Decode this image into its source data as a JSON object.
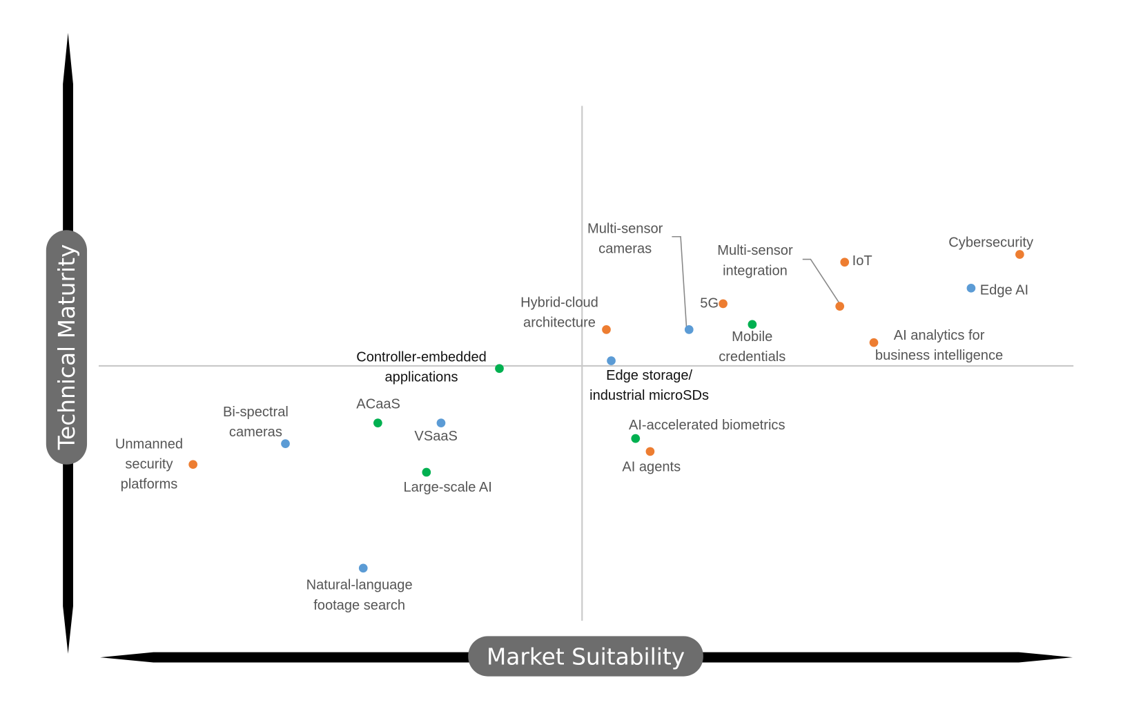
{
  "chart_data": {
    "type": "scatter",
    "title": "",
    "xlabel": "Market Suitability",
    "ylabel": "Technical Maturity",
    "xlim": [
      -100,
      100
    ],
    "ylim": [
      -100,
      100
    ],
    "grid": false,
    "quadrant_lines": {
      "x": 0,
      "y": 0
    },
    "colors": {
      "orange": "#ED7D31",
      "blue": "#5B9BD5",
      "green": "#00B050"
    },
    "points": [
      {
        "lines": [
          "Cybersecurity"
        ],
        "x": 90,
        "y": 43,
        "color": "orange"
      },
      {
        "lines": [
          "Edge AI"
        ],
        "x": 80,
        "y": 30,
        "color": "blue"
      },
      {
        "lines": [
          "IoT"
        ],
        "x": 54,
        "y": 40,
        "color": "orange"
      },
      {
        "lines": [
          "Multi-sensor",
          "integration"
        ],
        "x": 53,
        "y": 23,
        "color": "orange"
      },
      {
        "lines": [
          "AI analytics for",
          "business intelligence"
        ],
        "x": 60,
        "y": 9,
        "color": "orange"
      },
      {
        "lines": [
          "5G"
        ],
        "x": 29,
        "y": 24,
        "color": "orange"
      },
      {
        "lines": [
          "Mobile",
          "credentials"
        ],
        "x": 35,
        "y": 16,
        "color": "green"
      },
      {
        "lines": [
          "Multi-sensor",
          "cameras"
        ],
        "x": 22,
        "y": 14,
        "color": "blue"
      },
      {
        "lines": [
          "Hybrid-cloud",
          "architecture"
        ],
        "x": 5,
        "y": 14,
        "color": "orange"
      },
      {
        "lines": [
          "Edge storage/",
          "industrial microSDs"
        ],
        "x": 6,
        "y": 2,
        "color": "blue"
      },
      {
        "lines": [
          "Controller-embedded",
          "applications"
        ],
        "x": -17,
        "y": -1,
        "color": "green"
      },
      {
        "lines": [
          "ACaaS"
        ],
        "x": -42,
        "y": -22,
        "color": "green"
      },
      {
        "lines": [
          "VSaaS"
        ],
        "x": -29,
        "y": -22,
        "color": "blue"
      },
      {
        "lines": [
          "Large-scale AI"
        ],
        "x": -32,
        "y": -41,
        "color": "green"
      },
      {
        "lines": [
          "Bi-spectral",
          "cameras"
        ],
        "x": -61,
        "y": -30,
        "color": "blue"
      },
      {
        "lines": [
          "Unmanned",
          "security",
          "platforms"
        ],
        "x": -80,
        "y": -38,
        "color": "orange"
      },
      {
        "lines": [
          "Natural-language",
          "footage search"
        ],
        "x": -45,
        "y": -78,
        "color": "blue"
      },
      {
        "lines": [
          "AI-accelerated biometrics"
        ],
        "x": 11,
        "y": -28,
        "color": "green"
      },
      {
        "lines": [
          "AI agents"
        ],
        "x": 14,
        "y": -33,
        "color": "orange"
      }
    ]
  }
}
